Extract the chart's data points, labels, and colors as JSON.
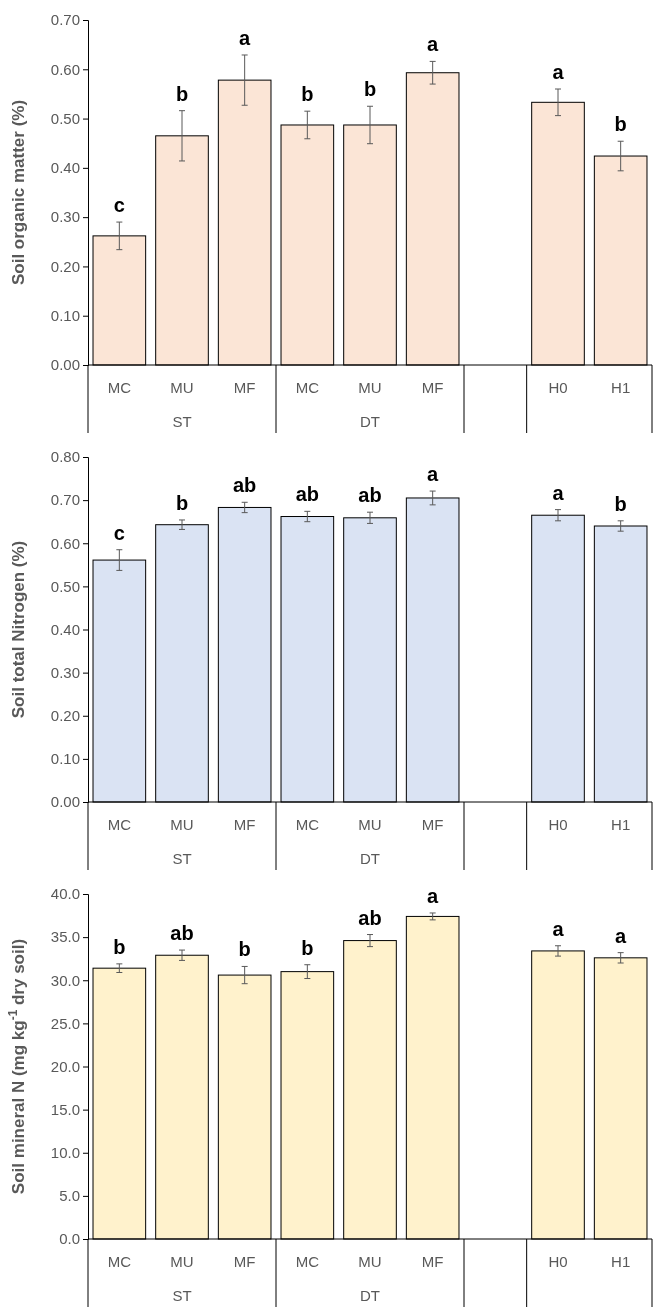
{
  "chart_data": [
    {
      "type": "bar",
      "ylabel": "Soil organic matter (%)",
      "categories": [
        "MC",
        "MU",
        "MF",
        "MC",
        "MU",
        "MF",
        null,
        "H0",
        "H1"
      ],
      "color": "#fbe5d6",
      "values": [
        0.262,
        0.465,
        0.578,
        0.487,
        0.487,
        0.593,
        null,
        0.533,
        0.424
      ],
      "errors": [
        0.028,
        0.051,
        0.051,
        0.028,
        0.038,
        0.023,
        null,
        0.027,
        0.03
      ],
      "value_labels": [
        "c",
        "b",
        "a",
        "b",
        "b",
        "a",
        null,
        "a",
        "b"
      ],
      "ylim": [
        0,
        0.7
      ],
      "yticks": [
        {
          "value": 0,
          "label": "0.00"
        },
        {
          "value": 0.1,
          "label": "0.10"
        },
        {
          "value": 0.2,
          "label": "0.20"
        },
        {
          "value": 0.3,
          "label": "0.30"
        },
        {
          "value": 0.4,
          "label": "0.40"
        },
        {
          "value": 0.5,
          "label": "0.50"
        },
        {
          "value": 0.6,
          "label": "0.60"
        },
        {
          "value": 0.7,
          "label": "0.70"
        }
      ],
      "annotations": [
        "ST",
        "DT"
      ]
    },
    {
      "type": "bar",
      "ylabel": "Soil total Nitrogen (%)",
      "categories": [
        "MC",
        "MU",
        "MF",
        "MC",
        "MU",
        "MF",
        null,
        "H0",
        "H1"
      ],
      "color": "#dae3f3",
      "values": [
        0.561,
        0.643,
        0.683,
        0.662,
        0.659,
        0.705,
        null,
        0.665,
        0.64
      ],
      "errors": [
        0.024,
        0.011,
        0.012,
        0.012,
        0.013,
        0.016,
        null,
        0.013,
        0.012
      ],
      "value_labels": [
        "c",
        "b",
        "ab",
        "ab",
        "ab",
        "a",
        null,
        "a",
        "b"
      ],
      "ylim": [
        0,
        0.8
      ],
      "yticks": [
        {
          "value": 0,
          "label": "0.00"
        },
        {
          "value": 0.1,
          "label": "0.10"
        },
        {
          "value": 0.2,
          "label": "0.20"
        },
        {
          "value": 0.3,
          "label": "0.30"
        },
        {
          "value": 0.4,
          "label": "0.40"
        },
        {
          "value": 0.5,
          "label": "0.50"
        },
        {
          "value": 0.6,
          "label": "0.60"
        },
        {
          "value": 0.7,
          "label": "0.70"
        },
        {
          "value": 0.8,
          "label": "0.80"
        }
      ],
      "annotations": [
        "ST",
        "DT"
      ]
    },
    {
      "type": "bar",
      "ylabel": "Soil mineral N (mg kg$^{-1}$ dry soil)",
      "categories": [
        "MC",
        "MU",
        "MF",
        "MC",
        "MU",
        "MF",
        null,
        "H0",
        "H1"
      ],
      "color": "#fff2cc",
      "values": [
        31.4,
        32.9,
        30.6,
        31.0,
        34.6,
        37.4,
        null,
        33.4,
        32.6
      ],
      "errors": [
        0.5,
        0.6,
        1.0,
        0.8,
        0.7,
        0.4,
        null,
        0.6,
        0.6
      ],
      "value_labels": [
        "b",
        "ab",
        "b",
        "b",
        "ab",
        "a",
        null,
        "a",
        "a"
      ],
      "ylim": [
        0,
        40
      ],
      "yticks": [
        {
          "value": 0,
          "label": "0.0"
        },
        {
          "value": 5,
          "label": "5.0"
        },
        {
          "value": 10,
          "label": "10.0"
        },
        {
          "value": 15,
          "label": "15.0"
        },
        {
          "value": 20,
          "label": "20.0"
        },
        {
          "value": 25,
          "label": "25.0"
        },
        {
          "value": 30,
          "label": "30.0"
        },
        {
          "value": 35,
          "label": "35.0"
        },
        {
          "value": 40,
          "label": "40.0"
        }
      ],
      "annotations": [
        "ST",
        "DT"
      ]
    }
  ]
}
